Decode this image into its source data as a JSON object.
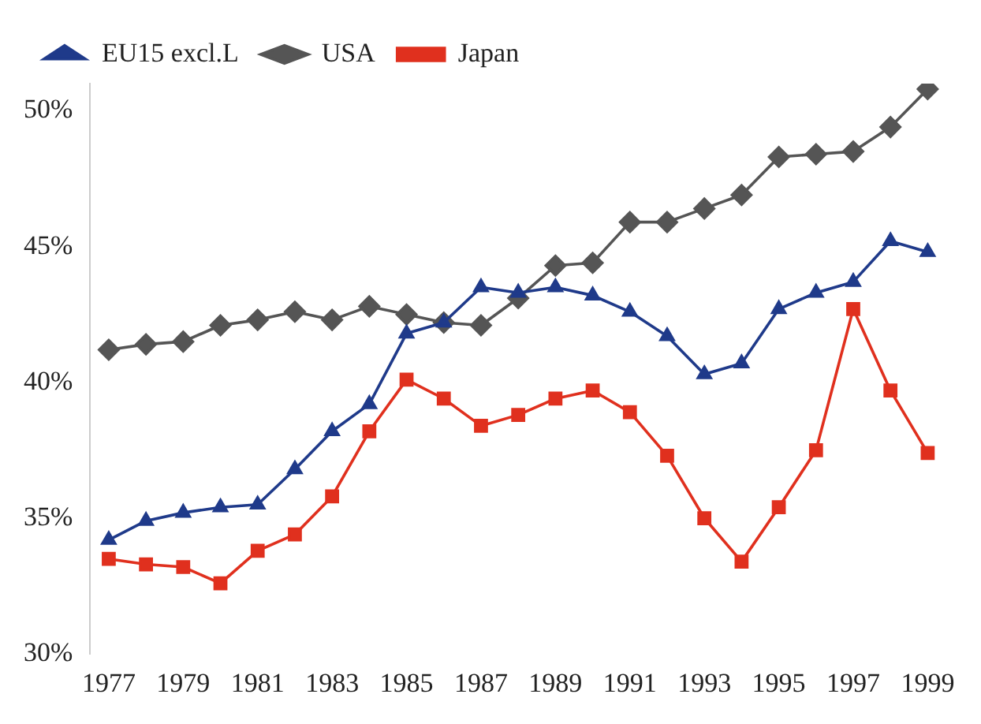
{
  "chart_data": {
    "type": "line",
    "categories": [
      "1977",
      null,
      "1979",
      null,
      "1981",
      null,
      "1983",
      null,
      "1985",
      null,
      "1987",
      null,
      "1989",
      null,
      "1991",
      null,
      "1993",
      null,
      "1995",
      null,
      "1997",
      null,
      "1999"
    ],
    "series": [
      {
        "name": "EU15 excl.L",
        "color": "#1f3a8a",
        "marker": "triangle",
        "values": [
          34.2,
          34.9,
          35.2,
          35.4,
          35.5,
          36.8,
          38.2,
          39.2,
          41.8,
          42.2,
          43.5,
          43.3,
          43.5,
          43.2,
          42.6,
          41.7,
          40.3,
          40.7,
          42.7,
          43.3,
          43.7,
          45.2,
          44.8
        ]
      },
      {
        "name": "USA",
        "color": "#555555",
        "marker": "diamond",
        "values": [
          41.2,
          41.4,
          41.5,
          42.1,
          42.3,
          42.6,
          42.3,
          42.8,
          42.5,
          42.2,
          42.1,
          43.1,
          44.3,
          44.4,
          45.9,
          45.9,
          46.4,
          46.9,
          48.3,
          48.4,
          48.5,
          49.4,
          50.8
        ]
      },
      {
        "name": "Japan",
        "color": "#e0301e",
        "marker": "square",
        "values": [
          33.5,
          33.3,
          33.2,
          32.6,
          33.8,
          34.4,
          35.8,
          38.2,
          40.1,
          39.4,
          38.4,
          38.8,
          39.4,
          39.7,
          38.9,
          37.3,
          35.0,
          33.4,
          35.4,
          37.5,
          42.7,
          39.7,
          37.4
        ]
      }
    ],
    "ylim": [
      30,
      51
    ],
    "yticks": [
      {
        "value": 30,
        "label": "30%"
      },
      {
        "value": 35,
        "label": "35%"
      },
      {
        "value": 40,
        "label": "40%"
      },
      {
        "value": 45,
        "label": "45%"
      },
      {
        "value": 50,
        "label": "50%"
      }
    ],
    "grid": false,
    "legend": "top left",
    "line_style": "solid"
  }
}
